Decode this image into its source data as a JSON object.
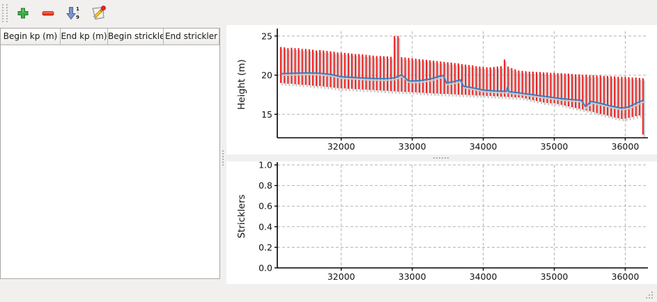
{
  "toolbar": {
    "buttons": [
      {
        "name": "add-row",
        "icon": "plus-icon"
      },
      {
        "name": "remove-row",
        "icon": "minus-icon"
      },
      {
        "name": "sort-rows",
        "icon": "sort-numeric-icon",
        "sort_top": "1",
        "sort_bottom": "9"
      },
      {
        "name": "edit-rows",
        "icon": "edit-icon"
      }
    ]
  },
  "table": {
    "columns": [
      {
        "label": "Begin kp (m)",
        "width": 86
      },
      {
        "label": "End kp (m)",
        "width": 68
      },
      {
        "label": "Begin strickler",
        "width": 80
      },
      {
        "label": "End strickler",
        "width": 80
      }
    ],
    "rows": []
  },
  "colors": {
    "bar_red": "#ee1a1a",
    "bar_shadow": "#c9c9c9",
    "line_blue": "#3c7cbe",
    "grid": "#b3b3b3",
    "axis": "#000000"
  },
  "chart_data": [
    {
      "type": "bar",
      "title": "",
      "xlabel": "",
      "ylabel": "Height (m)",
      "xlim": [
        31100,
        36300
      ],
      "ylim": [
        12.0,
        25.6
      ],
      "xticks": [
        32000,
        33000,
        34000,
        35000,
        36000
      ],
      "xtick_labels": [
        "32000",
        "33000",
        "34000",
        "35000",
        "36000"
      ],
      "yticks": [
        15,
        20,
        25
      ],
      "ytick_labels": [
        "15",
        "20",
        "25"
      ],
      "grid": true,
      "legend": "none",
      "bars": {
        "x": [
          31150,
          31200,
          31250,
          31300,
          31350,
          31400,
          31450,
          31500,
          31550,
          31600,
          31650,
          31700,
          31750,
          31800,
          31850,
          31900,
          31950,
          32000,
          32050,
          32100,
          32150,
          32200,
          32250,
          32300,
          32350,
          32400,
          32450,
          32500,
          32550,
          32600,
          32650,
          32700,
          32750,
          32800,
          32850,
          32900,
          32950,
          33000,
          33050,
          33100,
          33150,
          33200,
          33250,
          33300,
          33350,
          33400,
          33450,
          33500,
          33550,
          33600,
          33650,
          33700,
          33750,
          33800,
          33850,
          33900,
          33950,
          34000,
          34050,
          34100,
          34150,
          34200,
          34250,
          34300,
          34350,
          34400,
          34450,
          34500,
          34550,
          34600,
          34650,
          34700,
          34750,
          34800,
          34850,
          34900,
          34950,
          35000,
          35050,
          35100,
          35150,
          35200,
          35250,
          35300,
          35350,
          35400,
          35450,
          35500,
          35550,
          35600,
          35650,
          35700,
          35750,
          35800,
          35850,
          35900,
          35950,
          36000,
          36050,
          36100,
          36150,
          36200,
          36250
        ],
        "top": [
          23.6,
          23.55,
          23.45,
          23.5,
          23.45,
          23.45,
          23.35,
          23.35,
          23.3,
          23.25,
          23.15,
          23.2,
          23.15,
          23.1,
          23.05,
          23.0,
          22.9,
          22.9,
          22.85,
          22.8,
          22.75,
          22.7,
          22.7,
          22.65,
          22.6,
          22.55,
          22.5,
          22.45,
          22.45,
          22.4,
          22.4,
          22.35,
          25.0,
          25.0,
          22.3,
          22.25,
          22.2,
          22.15,
          22.1,
          22.05,
          22.0,
          21.95,
          21.9,
          21.85,
          21.8,
          21.75,
          21.7,
          21.65,
          21.6,
          21.55,
          21.5,
          21.4,
          21.35,
          21.3,
          21.25,
          21.15,
          21.1,
          21.05,
          21.0,
          21.0,
          21.05,
          21.1,
          21.15,
          22.0,
          21.1,
          20.9,
          20.75,
          20.6,
          20.55,
          20.5,
          20.45,
          20.45,
          20.4,
          20.4,
          20.35,
          20.35,
          20.3,
          20.3,
          20.25,
          20.25,
          20.2,
          20.2,
          20.15,
          20.1,
          20.1,
          20.05,
          20.05,
          20.0,
          20.0,
          19.95,
          19.95,
          19.9,
          19.9,
          19.85,
          19.85,
          19.8,
          19.8,
          19.8,
          19.75,
          19.7,
          19.7,
          19.65,
          19.6
        ],
        "bottom": [
          19.0,
          18.95,
          18.9,
          18.9,
          18.85,
          18.8,
          18.75,
          18.75,
          18.7,
          18.65,
          18.6,
          18.6,
          18.55,
          18.5,
          18.45,
          18.4,
          18.35,
          18.3,
          18.3,
          18.25,
          18.25,
          18.2,
          18.2,
          18.15,
          18.15,
          18.1,
          18.1,
          18.05,
          18.05,
          18.0,
          18.0,
          17.95,
          17.95,
          17.9,
          17.9,
          17.85,
          17.85,
          17.8,
          17.8,
          17.75,
          17.75,
          17.7,
          17.7,
          17.65,
          17.65,
          17.6,
          17.6,
          17.6,
          17.55,
          17.55,
          17.5,
          17.5,
          17.5,
          17.45,
          17.45,
          17.4,
          17.4,
          17.4,
          17.35,
          17.35,
          17.3,
          17.3,
          17.25,
          17.25,
          17.2,
          17.2,
          17.15,
          17.15,
          17.1,
          17.0,
          16.9,
          16.8,
          16.7,
          16.6,
          16.5,
          16.45,
          16.4,
          16.4,
          16.3,
          16.2,
          16.1,
          16.0,
          15.9,
          15.8,
          15.7,
          15.6,
          15.5,
          15.4,
          15.3,
          15.15,
          15.05,
          14.95,
          14.85,
          14.7,
          14.6,
          14.5,
          14.4,
          14.45,
          14.55,
          14.65,
          14.75,
          14.85,
          12.4
        ]
      },
      "line": {
        "x": [
          31150,
          31350,
          31500,
          31700,
          31850,
          32000,
          32200,
          32400,
          32600,
          32750,
          32850,
          32950,
          33100,
          33250,
          33400,
          33440,
          33480,
          33600,
          33680,
          33720,
          33900,
          34000,
          34150,
          34300,
          34330,
          34345,
          34360,
          34500,
          34700,
          34900,
          35100,
          35300,
          35380,
          35440,
          35520,
          35650,
          35800,
          35950,
          36050,
          36150,
          36250
        ],
        "y": [
          20.2,
          20.25,
          20.3,
          20.25,
          20.1,
          19.8,
          19.7,
          19.6,
          19.55,
          19.65,
          20.05,
          19.25,
          19.3,
          19.5,
          19.9,
          19.95,
          19.0,
          19.2,
          19.4,
          18.6,
          18.3,
          18.1,
          18.0,
          17.95,
          17.95,
          18.5,
          17.9,
          17.75,
          17.5,
          17.25,
          17.0,
          16.85,
          16.8,
          16.0,
          16.65,
          16.4,
          16.05,
          15.8,
          15.95,
          16.4,
          16.8
        ]
      }
    },
    {
      "type": "bar",
      "title": "",
      "xlabel": "",
      "ylabel": "Stricklers",
      "xlim": [
        31100,
        36300
      ],
      "ylim": [
        0.0,
        1.0
      ],
      "xticks": [
        32000,
        33000,
        34000,
        35000,
        36000
      ],
      "xtick_labels": [
        "32000",
        "33000",
        "34000",
        "35000",
        "36000"
      ],
      "yticks": [
        0.0,
        0.2,
        0.4,
        0.6,
        0.8,
        1.0
      ],
      "ytick_labels": [
        "0.0",
        "0.2",
        "0.4",
        "0.6",
        "0.8",
        "1.0"
      ],
      "grid": true,
      "legend": "none",
      "bars": {
        "x": [],
        "top": [],
        "bottom": []
      },
      "line": {
        "x": [],
        "y": []
      }
    }
  ],
  "statusbar": {
    "text": ""
  }
}
